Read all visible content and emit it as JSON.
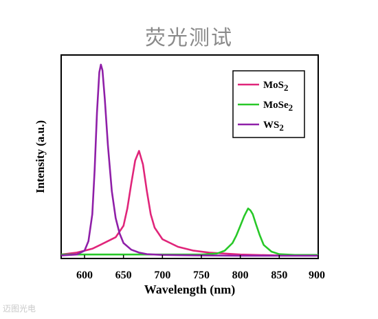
{
  "page": {
    "title": "荧光测试",
    "watermark": "迈图光电"
  },
  "chart_data": {
    "type": "line",
    "title": "荧光测试",
    "xlabel": "Wavelength (nm)",
    "ylabel": "Intensity (a.u.)",
    "xlim": [
      570,
      900
    ],
    "ylim": [
      0,
      1.05
    ],
    "xticks": [
      600,
      650,
      700,
      750,
      800,
      850,
      900
    ],
    "yticks": [],
    "legend_position": "top-right",
    "series": [
      {
        "name": "MoS2",
        "legend_base": "MoS",
        "legend_sub": "2",
        "color": "#e0257a",
        "x": [
          570,
          590,
          600,
          610,
          620,
          630,
          640,
          650,
          655,
          660,
          665,
          670,
          675,
          680,
          685,
          690,
          700,
          710,
          720,
          740,
          760,
          780,
          800,
          850,
          900
        ],
        "y": [
          0.01,
          0.02,
          0.03,
          0.04,
          0.06,
          0.08,
          0.1,
          0.16,
          0.25,
          0.38,
          0.5,
          0.55,
          0.48,
          0.34,
          0.22,
          0.15,
          0.09,
          0.07,
          0.05,
          0.03,
          0.02,
          0.015,
          0.01,
          0.005,
          0.005
        ]
      },
      {
        "name": "MoSe2",
        "legend_base": "MoSe",
        "legend_sub": "2",
        "color": "#28c828",
        "x": [
          570,
          700,
          750,
          770,
          780,
          790,
          795,
          800,
          805,
          810,
          813,
          816,
          820,
          825,
          830,
          840,
          850,
          870,
          900
        ],
        "y": [
          0.01,
          0.01,
          0.01,
          0.015,
          0.03,
          0.07,
          0.11,
          0.16,
          0.21,
          0.25,
          0.24,
          0.22,
          0.17,
          0.11,
          0.06,
          0.025,
          0.012,
          0.008,
          0.008
        ]
      },
      {
        "name": "WS2",
        "legend_base": "WS",
        "legend_sub": "2",
        "color": "#8f1fa8",
        "x": [
          570,
          590,
          600,
          605,
          610,
          613,
          616,
          619,
          621,
          623,
          626,
          630,
          635,
          640,
          645,
          650,
          660,
          670,
          680,
          700,
          750,
          800,
          900
        ],
        "y": [
          0.005,
          0.01,
          0.03,
          0.08,
          0.22,
          0.45,
          0.75,
          0.96,
          1.0,
          0.97,
          0.82,
          0.58,
          0.34,
          0.2,
          0.12,
          0.07,
          0.035,
          0.02,
          0.012,
          0.008,
          0.005,
          0.004,
          0.004
        ]
      }
    ]
  }
}
